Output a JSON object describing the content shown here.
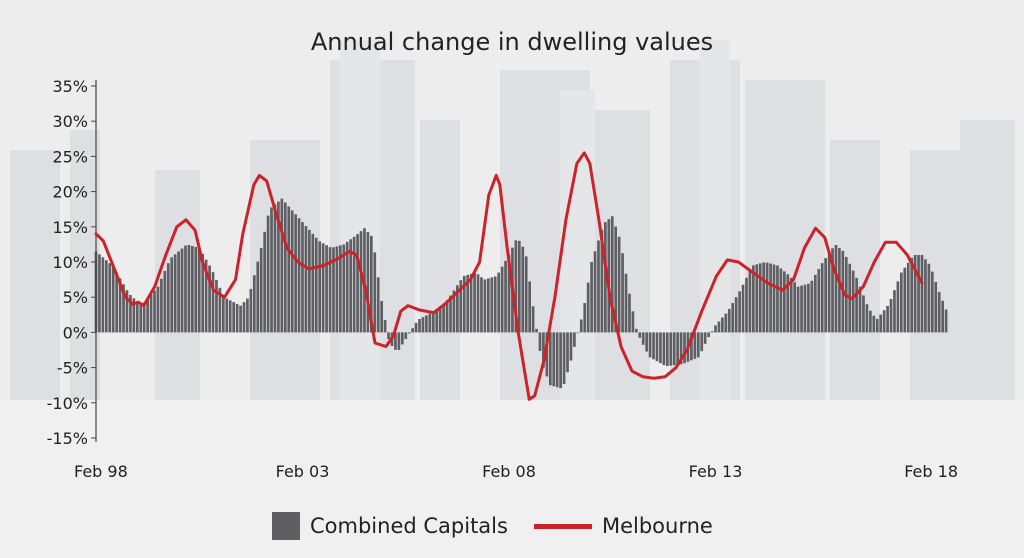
{
  "title": "Annual change in dwelling values",
  "legend": {
    "bars": "Combined Capitals",
    "line": "Melbourne"
  },
  "colors": {
    "bars": "#5f5f63",
    "line": "#cc2229",
    "axis": "#444444",
    "text": "#222222"
  },
  "chart_data": {
    "type": "bar",
    "title": "Annual change in dwelling values",
    "xlabel": "",
    "ylabel": "",
    "ylim": [
      -15,
      35
    ],
    "yticks": [
      35,
      30,
      25,
      20,
      15,
      10,
      5,
      0,
      -5,
      -10,
      -15
    ],
    "ytick_labels": [
      "35%",
      "30%",
      "25%",
      "20%",
      "15%",
      "10%",
      "5%",
      "0%",
      "-5%",
      "-10%",
      "-15%"
    ],
    "xticks": [
      1998.0,
      2003.0,
      2008.0,
      2013.0,
      2018.0
    ],
    "xtick_labels": [
      "Feb 98",
      "Feb 03",
      "Feb 08",
      "Feb 13",
      "Feb 18"
    ],
    "x_range": [
      1998.0,
      2018.0
    ],
    "series": [
      {
        "name": "Combined Capitals",
        "kind": "bar",
        "points": [
          [
            1998.0,
            11.5
          ],
          [
            1998.4,
            9.5
          ],
          [
            1998.8,
            5.5
          ],
          [
            1999.1,
            3.8
          ],
          [
            1999.5,
            6.5
          ],
          [
            1999.8,
            10.5
          ],
          [
            2000.2,
            12.5
          ],
          [
            2000.5,
            12.0
          ],
          [
            2000.8,
            9.0
          ],
          [
            2001.1,
            5.0
          ],
          [
            2001.5,
            3.8
          ],
          [
            2001.7,
            5.0
          ],
          [
            2002.0,
            12.0
          ],
          [
            2002.2,
            17.5
          ],
          [
            2002.5,
            19.0
          ],
          [
            2002.8,
            17.0
          ],
          [
            2003.1,
            15.0
          ],
          [
            2003.4,
            13.0
          ],
          [
            2003.7,
            12.0
          ],
          [
            2004.0,
            12.5
          ],
          [
            2004.3,
            13.8
          ],
          [
            2004.5,
            14.8
          ],
          [
            2004.7,
            13.5
          ],
          [
            2004.9,
            5.0
          ],
          [
            2005.1,
            -1.5
          ],
          [
            2005.3,
            -2.8
          ],
          [
            2005.6,
            0.0
          ],
          [
            2005.8,
            1.8
          ],
          [
            2006.2,
            3.0
          ],
          [
            2006.5,
            4.5
          ],
          [
            2006.9,
            8.0
          ],
          [
            2007.2,
            8.5
          ],
          [
            2007.4,
            7.5
          ],
          [
            2007.7,
            8.0
          ],
          [
            2008.0,
            11.0
          ],
          [
            2008.2,
            13.5
          ],
          [
            2008.4,
            11.5
          ],
          [
            2008.6,
            3.0
          ],
          [
            2008.8,
            -4.5
          ],
          [
            2009.0,
            -7.5
          ],
          [
            2009.3,
            -8.0
          ],
          [
            2009.5,
            -4.0
          ],
          [
            2009.8,
            3.0
          ],
          [
            2010.0,
            10.0
          ],
          [
            2010.3,
            15.5
          ],
          [
            2010.5,
            16.5
          ],
          [
            2010.7,
            13.0
          ],
          [
            2010.9,
            6.0
          ],
          [
            2011.1,
            0.0
          ],
          [
            2011.4,
            -3.5
          ],
          [
            2011.8,
            -4.8
          ],
          [
            2012.2,
            -4.5
          ],
          [
            2012.6,
            -3.5
          ],
          [
            2012.8,
            -1.0
          ],
          [
            2013.0,
            1.0
          ],
          [
            2013.3,
            3.0
          ],
          [
            2013.6,
            6.0
          ],
          [
            2013.9,
            9.5
          ],
          [
            2014.2,
            10.0
          ],
          [
            2014.5,
            9.5
          ],
          [
            2014.8,
            8.0
          ],
          [
            2015.0,
            6.5
          ],
          [
            2015.3,
            7.0
          ],
          [
            2015.6,
            10.0
          ],
          [
            2015.9,
            12.5
          ],
          [
            2016.1,
            11.5
          ],
          [
            2016.4,
            8.0
          ],
          [
            2016.7,
            3.5
          ],
          [
            2016.9,
            1.8
          ],
          [
            2017.2,
            4.0
          ],
          [
            2017.5,
            8.5
          ],
          [
            2017.8,
            11.0
          ],
          [
            2018.0,
            11.0
          ],
          [
            2018.2,
            9.5
          ],
          [
            2018.4,
            6.0
          ],
          [
            2018.6,
            3.0
          ]
        ]
      },
      {
        "name": "Melbourne",
        "kind": "line",
        "points": [
          [
            1998.0,
            14.0
          ],
          [
            1998.2,
            13.0
          ],
          [
            1998.5,
            9.0
          ],
          [
            1998.8,
            5.0
          ],
          [
            1999.0,
            4.0
          ],
          [
            1999.15,
            4.3
          ],
          [
            1999.3,
            3.8
          ],
          [
            1999.6,
            6.5
          ],
          [
            1999.9,
            11.0
          ],
          [
            2000.2,
            15.0
          ],
          [
            2000.45,
            16.0
          ],
          [
            2000.7,
            14.5
          ],
          [
            2000.9,
            10.0
          ],
          [
            2001.2,
            6.0
          ],
          [
            2001.5,
            5.0
          ],
          [
            2001.8,
            7.5
          ],
          [
            2002.0,
            14.0
          ],
          [
            2002.3,
            21.0
          ],
          [
            2002.45,
            22.3
          ],
          [
            2002.65,
            21.5
          ],
          [
            2002.9,
            17.0
          ],
          [
            2003.2,
            12.0
          ],
          [
            2003.5,
            10.0
          ],
          [
            2003.8,
            9.0
          ],
          [
            2004.2,
            9.5
          ],
          [
            2004.6,
            10.5
          ],
          [
            2004.9,
            11.5
          ],
          [
            2005.1,
            11.0
          ],
          [
            2005.35,
            6.0
          ],
          [
            2005.6,
            -1.5
          ],
          [
            2005.9,
            -2.0
          ],
          [
            2006.1,
            -0.5
          ],
          [
            2006.3,
            3.0
          ],
          [
            2006.5,
            3.8
          ],
          [
            2006.8,
            3.2
          ],
          [
            2007.2,
            2.8
          ],
          [
            2007.5,
            4.0
          ],
          [
            2007.9,
            6.0
          ],
          [
            2008.2,
            7.5
          ],
          [
            2008.45,
            10.0
          ],
          [
            2008.7,
            19.5
          ],
          [
            2008.9,
            22.3
          ],
          [
            2009.0,
            21.0
          ],
          [
            2009.2,
            12.0
          ],
          [
            2009.5,
            0.0
          ],
          [
            2009.8,
            -9.5
          ],
          [
            2009.95,
            -9.0
          ],
          [
            2010.2,
            -4.0
          ],
          [
            2010.5,
            5.0
          ],
          [
            2010.8,
            16.0
          ],
          [
            2011.1,
            24.0
          ],
          [
            2011.3,
            25.5
          ],
          [
            2011.45,
            24.0
          ],
          [
            2011.7,
            16.0
          ],
          [
            2012.0,
            5.0
          ],
          [
            2012.3,
            -2.0
          ],
          [
            2012.6,
            -5.5
          ],
          [
            2012.9,
            -6.3
          ],
          [
            2013.2,
            -6.5
          ],
          [
            2013.5,
            -6.3
          ],
          [
            2013.8,
            -5.0
          ],
          [
            2014.1,
            -2.5
          ],
          [
            2014.5,
            3.0
          ],
          [
            2014.9,
            8.0
          ],
          [
            2015.2,
            10.3
          ],
          [
            2015.5,
            10.0
          ],
          [
            2015.9,
            8.5
          ],
          [
            2016.3,
            7.0
          ],
          [
            2016.7,
            6.0
          ],
          [
            2017.0,
            7.5
          ],
          [
            2017.3,
            12.0
          ],
          [
            2017.6,
            14.8
          ],
          [
            2017.85,
            13.5
          ],
          [
            2018.1,
            9.0
          ],
          [
            2018.4,
            5.3
          ],
          [
            2018.6,
            4.8
          ],
          [
            2018.9,
            6.5
          ],
          [
            2019.2,
            10.0
          ],
          [
            2019.5,
            12.8
          ],
          [
            2019.8,
            12.8
          ],
          [
            2020.1,
            11.0
          ],
          [
            2020.3,
            9.0
          ],
          [
            2020.5,
            7.0
          ]
        ]
      }
    ],
    "grid": false,
    "legend_position": "bottom-center"
  }
}
